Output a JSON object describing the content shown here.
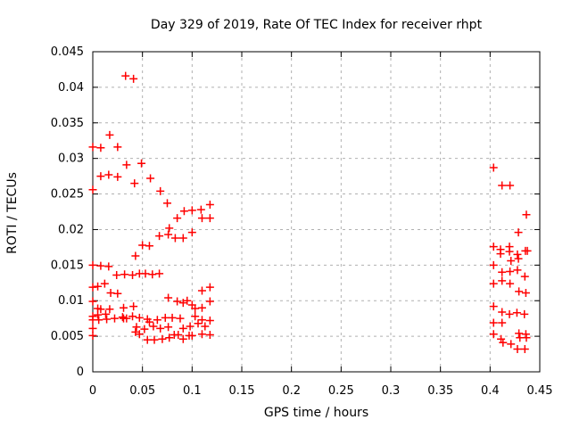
{
  "chart_data": {
    "type": "scatter",
    "title": "Day 329 of 2019, Rate Of TEC Index for receiver rhpt",
    "xlabel": "GPS time / hours",
    "ylabel": "ROTI / TECUs",
    "xlim": [
      0,
      0.45
    ],
    "ylim": [
      0,
      0.045
    ],
    "xticks": [
      "0",
      "0.05",
      "0.1",
      "0.15",
      "0.2",
      "0.25",
      "0.3",
      "0.35",
      "0.4",
      "0.45"
    ],
    "yticks": [
      "0",
      "0.005",
      "0.01",
      "0.015",
      "0.02",
      "0.025",
      "0.03",
      "0.035",
      "0.04",
      "0.045"
    ],
    "grid": true,
    "legend_position": "none",
    "marker": "plus",
    "marker_color": "#ff0000",
    "axis_color": "#000000",
    "grid_color": "#b0b0b0",
    "points": [
      [
        0.033,
        0.0416
      ],
      [
        0.041,
        0.0412
      ],
      [
        0.017,
        0.0333
      ],
      [
        0.0,
        0.0316
      ],
      [
        0.008,
        0.0315
      ],
      [
        0.025,
        0.0316
      ],
      [
        0.034,
        0.0291
      ],
      [
        0.049,
        0.0293
      ],
      [
        0.008,
        0.0275
      ],
      [
        0.016,
        0.0277
      ],
      [
        0.025,
        0.0274
      ],
      [
        0.042,
        0.0265
      ],
      [
        0.058,
        0.0272
      ],
      [
        0.0,
        0.0256
      ],
      [
        0.068,
        0.0254
      ],
      [
        0.075,
        0.0237
      ],
      [
        0.092,
        0.0226
      ],
      [
        0.1,
        0.0227
      ],
      [
        0.109,
        0.0228
      ],
      [
        0.118,
        0.0235
      ],
      [
        0.085,
        0.0216
      ],
      [
        0.11,
        0.0216
      ],
      [
        0.118,
        0.0216
      ],
      [
        0.077,
        0.0202
      ],
      [
        0.1,
        0.0196
      ],
      [
        0.067,
        0.0191
      ],
      [
        0.076,
        0.0193
      ],
      [
        0.083,
        0.0188
      ],
      [
        0.091,
        0.0188
      ],
      [
        0.05,
        0.0178
      ],
      [
        0.057,
        0.0177
      ],
      [
        0.043,
        0.0163
      ],
      [
        0.0,
        0.015
      ],
      [
        0.008,
        0.0149
      ],
      [
        0.016,
        0.0148
      ],
      [
        0.024,
        0.0136
      ],
      [
        0.032,
        0.0137
      ],
      [
        0.04,
        0.0136
      ],
      [
        0.047,
        0.0138
      ],
      [
        0.053,
        0.0138
      ],
      [
        0.06,
        0.0137
      ],
      [
        0.067,
        0.0138
      ],
      [
        0.0,
        0.0119
      ],
      [
        0.005,
        0.012
      ],
      [
        0.012,
        0.0124
      ],
      [
        0.018,
        0.0111
      ],
      [
        0.025,
        0.011
      ],
      [
        0.11,
        0.0114
      ],
      [
        0.118,
        0.0119
      ],
      [
        0.076,
        0.0104
      ],
      [
        0.0,
        0.0099
      ],
      [
        0.085,
        0.0099
      ],
      [
        0.091,
        0.0097
      ],
      [
        0.095,
        0.01
      ],
      [
        0.1,
        0.0094
      ],
      [
        0.103,
        0.0089
      ],
      [
        0.11,
        0.009
      ],
      [
        0.118,
        0.0099
      ],
      [
        0.005,
        0.0089
      ],
      [
        0.008,
        0.0088
      ],
      [
        0.017,
        0.0088
      ],
      [
        0.031,
        0.009
      ],
      [
        0.041,
        0.0092
      ],
      [
        0.0,
        0.0078
      ],
      [
        0.0,
        0.0073
      ],
      [
        0.005,
        0.008
      ],
      [
        0.006,
        0.0073
      ],
      [
        0.013,
        0.0081
      ],
      [
        0.014,
        0.0074
      ],
      [
        0.022,
        0.0075
      ],
      [
        0.03,
        0.0077
      ],
      [
        0.031,
        0.0075
      ],
      [
        0.034,
        0.0075
      ],
      [
        0.04,
        0.0078
      ],
      [
        0.047,
        0.0076
      ],
      [
        0.055,
        0.0074
      ],
      [
        0.057,
        0.007
      ],
      [
        0.065,
        0.0073
      ],
      [
        0.073,
        0.0076
      ],
      [
        0.08,
        0.0076
      ],
      [
        0.088,
        0.0075
      ],
      [
        0.103,
        0.0078
      ],
      [
        0.11,
        0.0073
      ],
      [
        0.118,
        0.0072
      ],
      [
        0.0,
        0.0061
      ],
      [
        0.044,
        0.0063
      ],
      [
        0.052,
        0.006
      ],
      [
        0.061,
        0.0064
      ],
      [
        0.068,
        0.0061
      ],
      [
        0.076,
        0.0063
      ],
      [
        0.091,
        0.0061
      ],
      [
        0.098,
        0.0064
      ],
      [
        0.106,
        0.0068
      ],
      [
        0.113,
        0.0064
      ],
      [
        0.0,
        0.0051
      ],
      [
        0.043,
        0.0056
      ],
      [
        0.047,
        0.0053
      ],
      [
        0.055,
        0.0045
      ],
      [
        0.062,
        0.0045
      ],
      [
        0.07,
        0.0046
      ],
      [
        0.077,
        0.0048
      ],
      [
        0.082,
        0.0052
      ],
      [
        0.086,
        0.0052
      ],
      [
        0.091,
        0.0046
      ],
      [
        0.097,
        0.0051
      ],
      [
        0.1,
        0.0051
      ],
      [
        0.11,
        0.0053
      ],
      [
        0.118,
        0.0052
      ],
      [
        0.4035,
        0.0287
      ],
      [
        0.412,
        0.0262
      ],
      [
        0.42,
        0.0262
      ],
      [
        0.4365,
        0.0221
      ],
      [
        0.4285,
        0.0196
      ],
      [
        0.4035,
        0.0176
      ],
      [
        0.4105,
        0.0172
      ],
      [
        0.4105,
        0.0166
      ],
      [
        0.4195,
        0.0176
      ],
      [
        0.4195,
        0.0169
      ],
      [
        0.4275,
        0.0165
      ],
      [
        0.4285,
        0.0159
      ],
      [
        0.4355,
        0.017
      ],
      [
        0.4375,
        0.017
      ],
      [
        0.421,
        0.0156
      ],
      [
        0.4035,
        0.015
      ],
      [
        0.412,
        0.014
      ],
      [
        0.42,
        0.0141
      ],
      [
        0.4275,
        0.0143
      ],
      [
        0.435,
        0.0134
      ],
      [
        0.4035,
        0.0124
      ],
      [
        0.412,
        0.0128
      ],
      [
        0.42,
        0.0124
      ],
      [
        0.429,
        0.0113
      ],
      [
        0.436,
        0.0111
      ],
      [
        0.4035,
        0.0092
      ],
      [
        0.412,
        0.0084
      ],
      [
        0.4195,
        0.0081
      ],
      [
        0.427,
        0.0083
      ],
      [
        0.4345,
        0.0081
      ],
      [
        0.4035,
        0.0069
      ],
      [
        0.412,
        0.0069
      ],
      [
        0.4035,
        0.0053
      ],
      [
        0.411,
        0.0046
      ],
      [
        0.413,
        0.0041
      ],
      [
        0.429,
        0.0054
      ],
      [
        0.43,
        0.0048
      ],
      [
        0.436,
        0.0053
      ],
      [
        0.4365,
        0.0048
      ],
      [
        0.421,
        0.0039
      ],
      [
        0.4275,
        0.0032
      ],
      [
        0.435,
        0.0032
      ]
    ]
  }
}
